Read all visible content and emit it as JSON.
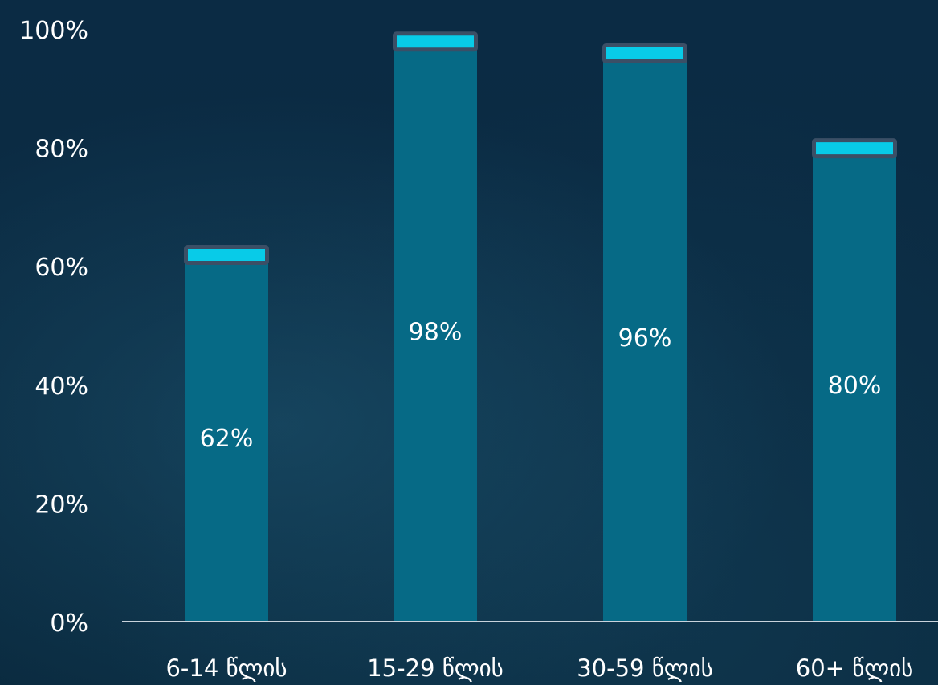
{
  "chart_data": {
    "type": "bar",
    "categories": [
      "6-14 წლის",
      "15-29 წლის",
      "30-59 წლის",
      "60+ წლის"
    ],
    "values": [
      62,
      98,
      96,
      80
    ],
    "value_labels": [
      "62%",
      "98%",
      "96%",
      "80%"
    ],
    "y_ticks": [
      0,
      20,
      40,
      60,
      80,
      100
    ],
    "y_tick_labels": [
      "0%",
      "20%",
      "40%",
      "60%",
      "80%",
      "100%"
    ],
    "ylim": [
      0,
      100
    ],
    "grid": false,
    "title": "",
    "xlabel": "",
    "ylabel": ""
  },
  "colors": {
    "background": "#0a2a40",
    "bar": "#066a86",
    "cap_fill": "#08cbe8",
    "cap_border": "#3b4f66",
    "axis": "#c9d3dc",
    "text": "#ffffff"
  }
}
